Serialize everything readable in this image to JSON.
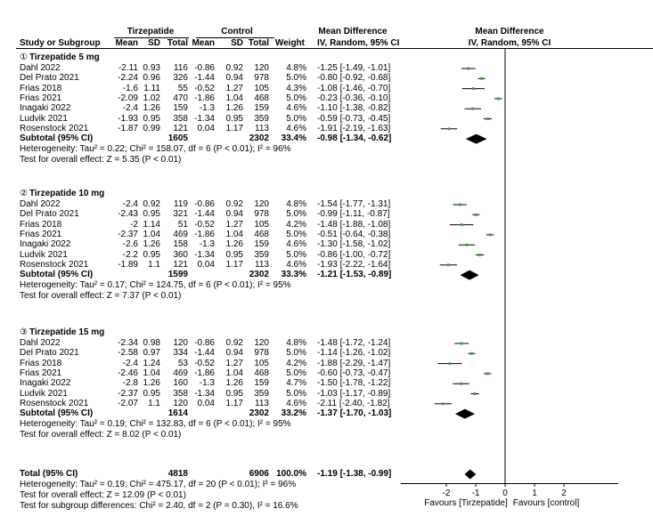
{
  "header": {
    "group_tirz": "Tirzepatide",
    "group_ctrl": "Control",
    "md_title": "Mean Difference",
    "md_sub": "IV, Random, 95% CI",
    "study": "Study or Subgroup",
    "mean": "Mean",
    "sd": "SD",
    "total": "Total",
    "weight": "Weight",
    "plot_title": "Mean Difference",
    "plot_sub": "IV, Random, 95% CI"
  },
  "subgroups": [
    {
      "title": "Tirzepatide 5 mg",
      "marker": "①",
      "studies": [
        {
          "name": "Dahl 2022",
          "tm": "-2.11",
          "tsd": "0.93",
          "tn": "116",
          "cm": "-0.86",
          "csd": "0.92",
          "cn": "120",
          "w": "4.8%",
          "ci": "-1.25 [-1.49, -1.01]"
        },
        {
          "name": "Del Prato 2021",
          "tm": "-2.24",
          "tsd": "0.96",
          "tn": "326",
          "cm": "-1.44",
          "csd": "0.94",
          "cn": "978",
          "w": "5.0%",
          "ci": "-0.80 [-0.92, -0.68]"
        },
        {
          "name": "Frias 2018",
          "tm": "-1.6",
          "tsd": "1.11",
          "tn": "55",
          "cm": "-0.52",
          "csd": "1.27",
          "cn": "105",
          "w": "4.3%",
          "ci": "-1.08 [-1.46, -0.70]"
        },
        {
          "name": "Frias 2021",
          "tm": "-2.09",
          "tsd": "1.02",
          "tn": "470",
          "cm": "-1.86",
          "csd": "1.04",
          "cn": "468",
          "w": "5.0%",
          "ci": "-0.23 [-0.36, -0.10]"
        },
        {
          "name": "Inagaki 2022",
          "tm": "-2.4",
          "tsd": "1.26",
          "tn": "159",
          "cm": "-1.3",
          "csd": "1.26",
          "cn": "159",
          "w": "4.6%",
          "ci": "-1.10 [-1.38, -0.82]"
        },
        {
          "name": "Ludvik 2021",
          "tm": "-1.93",
          "tsd": "0.95",
          "tn": "358",
          "cm": "-1.34",
          "csd": "0.95",
          "cn": "359",
          "w": "5.0%",
          "ci": "-0.59 [-0.73, -0.45]"
        },
        {
          "name": "Rosenstock 2021",
          "tm": "-1.87",
          "tsd": "0.99",
          "tn": "121",
          "cm": "0.04",
          "csd": "1.17",
          "cn": "113",
          "w": "4.6%",
          "ci": "-1.91 [-2.19, -1.63]"
        }
      ],
      "subtotal": {
        "label": "Subtotal (95% CI)",
        "tn": "1605",
        "cn": "2302",
        "w": "33.4%",
        "ci": "-0.98 [-1.34, -0.62]"
      },
      "het": "Heterogeneity: Tau² = 0.22; Chi² = 158.07, df = 6 (P < 0.01); I² = 96%",
      "test": "Test for overall effect: Z = 5.35 (P < 0.01)"
    },
    {
      "title": "Tirzepatide 10 mg",
      "marker": "②",
      "studies": [
        {
          "name": "Dahl 2022",
          "tm": "-2.4",
          "tsd": "0.92",
          "tn": "119",
          "cm": "-0.86",
          "csd": "0.92",
          "cn": "120",
          "w": "4.8%",
          "ci": "-1.54 [-1.77, -1.31]"
        },
        {
          "name": "Del Prato 2021",
          "tm": "-2.43",
          "tsd": "0.95",
          "tn": "321",
          "cm": "-1.44",
          "csd": "0.94",
          "cn": "978",
          "w": "5.0%",
          "ci": "-0.99 [-1.11, -0.87]"
        },
        {
          "name": "Frias 2018",
          "tm": "-2",
          "tsd": "1.14",
          "tn": "51",
          "cm": "-0.52",
          "csd": "1.27",
          "cn": "105",
          "w": "4.2%",
          "ci": "-1.48 [-1.88, -1.08]"
        },
        {
          "name": "Frias 2021",
          "tm": "-2.37",
          "tsd": "1.04",
          "tn": "469",
          "cm": "-1.86",
          "csd": "1.04",
          "cn": "468",
          "w": "5.0%",
          "ci": "-0.51 [-0.64, -0.38]"
        },
        {
          "name": "Inagaki 2022",
          "tm": "-2.6",
          "tsd": "1.26",
          "tn": "158",
          "cm": "-1.3",
          "csd": "1.26",
          "cn": "159",
          "w": "4.6%",
          "ci": "-1.30 [-1.58, -1.02]"
        },
        {
          "name": "Ludvik 2021",
          "tm": "-2.2",
          "tsd": "0.95",
          "tn": "360",
          "cm": "-1.34",
          "csd": "0.95",
          "cn": "359",
          "w": "5.0%",
          "ci": "-0.86 [-1.00, -0.72]"
        },
        {
          "name": "Rosenstock 2021",
          "tm": "-1.89",
          "tsd": "1.1",
          "tn": "121",
          "cm": "0.04",
          "csd": "1.17",
          "cn": "113",
          "w": "4.6%",
          "ci": "-1.93 [-2.22, -1.64]"
        }
      ],
      "subtotal": {
        "label": "Subtotal (95% CI)",
        "tn": "1599",
        "cn": "2302",
        "w": "33.3%",
        "ci": "-1.21 [-1.53, -0.89]"
      },
      "het": "Heterogeneity: Tau² = 0.17; Chi² = 124.75, df = 6 (P < 0.01); I² = 95%",
      "test": "Test for overall effect: Z = 7.37 (P < 0.01)"
    },
    {
      "title": "Tirzepatide 15 mg",
      "marker": "③",
      "studies": [
        {
          "name": "Dahl 2022",
          "tm": "-2.34",
          "tsd": "0.98",
          "tn": "120",
          "cm": "-0.86",
          "csd": "0.92",
          "cn": "120",
          "w": "4.8%",
          "ci": "-1.48 [-1.72, -1.24]"
        },
        {
          "name": "Del Prato 2021",
          "tm": "-2.58",
          "tsd": "0.97",
          "tn": "334",
          "cm": "-1.44",
          "csd": "0.94",
          "cn": "978",
          "w": "5.0%",
          "ci": "-1.14 [-1.26, -1.02]"
        },
        {
          "name": "Frias 2018",
          "tm": "-2.4",
          "tsd": "1.24",
          "tn": "53",
          "cm": "-0.52",
          "csd": "1.27",
          "cn": "105",
          "w": "4.2%",
          "ci": "-1.88 [-2.29, -1.47]"
        },
        {
          "name": "Frias 2021",
          "tm": "-2.46",
          "tsd": "1.04",
          "tn": "469",
          "cm": "-1.86",
          "csd": "1.04",
          "cn": "468",
          "w": "5.0%",
          "ci": "-0.60 [-0.73, -0.47]"
        },
        {
          "name": "Inagaki 2022",
          "tm": "-2.8",
          "tsd": "1.26",
          "tn": "160",
          "cm": "-1.3",
          "csd": "1.26",
          "cn": "159",
          "w": "4.7%",
          "ci": "-1.50 [-1.78, -1.22]"
        },
        {
          "name": "Ludvik 2021",
          "tm": "-2.37",
          "tsd": "0.95",
          "tn": "358",
          "cm": "-1.34",
          "csd": "0.95",
          "cn": "359",
          "w": "5.0%",
          "ci": "-1.03 [-1.17, -0.89]"
        },
        {
          "name": "Rosenstock 2021",
          "tm": "-2.07",
          "tsd": "1.1",
          "tn": "120",
          "cm": "0.04",
          "csd": "1.17",
          "cn": "113",
          "w": "4.6%",
          "ci": "-2.11 [-2.40, -1.82]"
        }
      ],
      "subtotal": {
        "label": "Subtotal (95% CI)",
        "tn": "1614",
        "cn": "2302",
        "w": "33.2%",
        "ci": "-1.37 [-1.70, -1.03]"
      },
      "het": "Heterogeneity: Tau² = 0.19; Chi² = 132.83, df = 6 (P < 0.01); I² = 95%",
      "test": "Test for overall effect: Z = 8.02 (P < 0.01)"
    }
  ],
  "total": {
    "label": "Total (95% CI)",
    "tn": "4818",
    "cn": "6906",
    "w": "100.0%",
    "ci": "-1.19 [-1.38, -0.99]",
    "het": "Heterogeneity: Tau² = 0.19; Chi² = 475.17, df = 20 (P < 0.01); I² = 96%",
    "test": "Test for overall effect: Z = 12.09 (P < 0.01)",
    "subgroup": "Test for subgroup differences: Chi² = 2.40, df = 2 (P = 0.30), I² = 16.6%"
  },
  "axis": {
    "favours_left": "Favours [Tirzepatide]",
    "favours_right": "Favours [control]"
  },
  "colors": {
    "square": "#3aa33a",
    "diamond": "#000000",
    "line": "#000000"
  },
  "chart_data": {
    "type": "forest",
    "xlim": [
      -3.0,
      3.0
    ],
    "xticks": [
      -2,
      -1,
      0,
      1,
      2
    ],
    "rows": [
      {
        "study": "Dahl 2022",
        "group": "Tirzepatide 5 mg",
        "md": -1.25,
        "lo": -1.49,
        "hi": -1.01,
        "weight": 4.8
      },
      {
        "study": "Del Prato 2021",
        "group": "Tirzepatide 5 mg",
        "md": -0.8,
        "lo": -0.92,
        "hi": -0.68,
        "weight": 5.0
      },
      {
        "study": "Frias 2018",
        "group": "Tirzepatide 5 mg",
        "md": -1.08,
        "lo": -1.46,
        "hi": -0.7,
        "weight": 4.3
      },
      {
        "study": "Frias 2021",
        "group": "Tirzepatide 5 mg",
        "md": -0.23,
        "lo": -0.36,
        "hi": -0.1,
        "weight": 5.0
      },
      {
        "study": "Inagaki 2022",
        "group": "Tirzepatide 5 mg",
        "md": -1.1,
        "lo": -1.38,
        "hi": -0.82,
        "weight": 4.6
      },
      {
        "study": "Ludvik 2021",
        "group": "Tirzepatide 5 mg",
        "md": -0.59,
        "lo": -0.73,
        "hi": -0.45,
        "weight": 5.0
      },
      {
        "study": "Rosenstock 2021",
        "group": "Tirzepatide 5 mg",
        "md": -1.91,
        "lo": -2.19,
        "hi": -1.63,
        "weight": 4.6
      },
      {
        "study": "Subtotal (95% CI)",
        "group": "Tirzepatide 5 mg",
        "md": -0.98,
        "lo": -1.34,
        "hi": -0.62,
        "weight": 33.4,
        "summary": true
      },
      {
        "study": "Dahl 2022",
        "group": "Tirzepatide 10 mg",
        "md": -1.54,
        "lo": -1.77,
        "hi": -1.31,
        "weight": 4.8
      },
      {
        "study": "Del Prato 2021",
        "group": "Tirzepatide 10 mg",
        "md": -0.99,
        "lo": -1.11,
        "hi": -0.87,
        "weight": 5.0
      },
      {
        "study": "Frias 2018",
        "group": "Tirzepatide 10 mg",
        "md": -1.48,
        "lo": -1.88,
        "hi": -1.08,
        "weight": 4.2
      },
      {
        "study": "Frias 2021",
        "group": "Tirzepatide 10 mg",
        "md": -0.51,
        "lo": -0.64,
        "hi": -0.38,
        "weight": 5.0
      },
      {
        "study": "Inagaki 2022",
        "group": "Tirzepatide 10 mg",
        "md": -1.3,
        "lo": -1.58,
        "hi": -1.02,
        "weight": 4.6
      },
      {
        "study": "Ludvik 2021",
        "group": "Tirzepatide 10 mg",
        "md": -0.86,
        "lo": -1.0,
        "hi": -0.72,
        "weight": 5.0
      },
      {
        "study": "Rosenstock 2021",
        "group": "Tirzepatide 10 mg",
        "md": -1.93,
        "lo": -2.22,
        "hi": -1.64,
        "weight": 4.6
      },
      {
        "study": "Subtotal (95% CI)",
        "group": "Tirzepatide 10 mg",
        "md": -1.21,
        "lo": -1.53,
        "hi": -0.89,
        "weight": 33.3,
        "summary": true
      },
      {
        "study": "Dahl 2022",
        "group": "Tirzepatide 15 mg",
        "md": -1.48,
        "lo": -1.72,
        "hi": -1.24,
        "weight": 4.8
      },
      {
        "study": "Del Prato 2021",
        "group": "Tirzepatide 15 mg",
        "md": -1.14,
        "lo": -1.26,
        "hi": -1.02,
        "weight": 5.0
      },
      {
        "study": "Frias 2018",
        "group": "Tirzepatide 15 mg",
        "md": -1.88,
        "lo": -2.29,
        "hi": -1.47,
        "weight": 4.2
      },
      {
        "study": "Frias 2021",
        "group": "Tirzepatide 15 mg",
        "md": -0.6,
        "lo": -0.73,
        "hi": -0.47,
        "weight": 5.0
      },
      {
        "study": "Inagaki 2022",
        "group": "Tirzepatide 15 mg",
        "md": -1.5,
        "lo": -1.78,
        "hi": -1.22,
        "weight": 4.7
      },
      {
        "study": "Ludvik 2021",
        "group": "Tirzepatide 15 mg",
        "md": -1.03,
        "lo": -1.17,
        "hi": -0.89,
        "weight": 5.0
      },
      {
        "study": "Rosenstock 2021",
        "group": "Tirzepatide 15 mg",
        "md": -2.11,
        "lo": -2.4,
        "hi": -1.82,
        "weight": 4.6
      },
      {
        "study": "Subtotal (95% CI)",
        "group": "Tirzepatide 15 mg",
        "md": -1.37,
        "lo": -1.7,
        "hi": -1.03,
        "weight": 33.2,
        "summary": true
      },
      {
        "study": "Total (95% CI)",
        "group": "Total",
        "md": -1.19,
        "lo": -1.38,
        "hi": -0.99,
        "weight": 100.0,
        "summary": true
      }
    ]
  }
}
